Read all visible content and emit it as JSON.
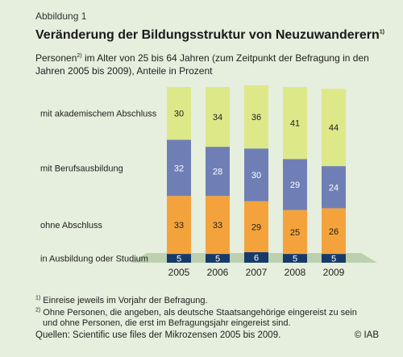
{
  "figure_label": "Abbildung 1",
  "title": "Veränderung der Bildungsstruktur von Neuzuwanderern",
  "title_footnote_mark": "1)",
  "subtitle_prefix": "Personen",
  "subtitle_footnote_mark": "2)",
  "subtitle_rest": " im Alter von 25 bis 64 Jahren (zum Zeitpunkt der Befragung in den Jahren 2005 bis 2009), Anteile in Prozent",
  "chart_data": {
    "type": "bar",
    "stacked": true,
    "categories": [
      "2005",
      "2006",
      "2007",
      "2008",
      "2009"
    ],
    "series": [
      {
        "name": "in Ausbildung oder Studium",
        "color": "#163a6a",
        "label_color": "#ffffff",
        "values": [
          5,
          5,
          6,
          5,
          5
        ]
      },
      {
        "name": "ohne Abschluss",
        "color": "#f4a33c",
        "label_color": "#1e1e1e",
        "values": [
          33,
          33,
          29,
          25,
          26
        ]
      },
      {
        "name": "mit Berufsausbildung",
        "color": "#6f7fb6",
        "label_color": "#ffffff",
        "values": [
          32,
          28,
          30,
          29,
          24
        ]
      },
      {
        "name": "mit akademischem Abschluss",
        "color": "#dde889",
        "label_color": "#1e1e1e",
        "values": [
          30,
          34,
          36,
          41,
          44
        ]
      }
    ],
    "ylim": [
      0,
      100
    ],
    "legend_placement": "left, inline with segments",
    "grid": false
  },
  "footnotes": [
    {
      "mark": "1)",
      "text": " Einreise jeweils im Vorjahr der Befragung."
    },
    {
      "mark": "2)",
      "text": " Ohne Personen, die angeben, als deutsche Staatsangehörige eingereist zu sein",
      "continuation": "und ohne Personen, die erst im Befragungsjahr eingereist sind."
    }
  ],
  "source": "Quellen: Scientific use files der Mikrozensen 2005 bis 2009.",
  "copyright": "© IAB",
  "colors": {
    "background": "#e6eedd",
    "platform": "#bcd0b0"
  }
}
